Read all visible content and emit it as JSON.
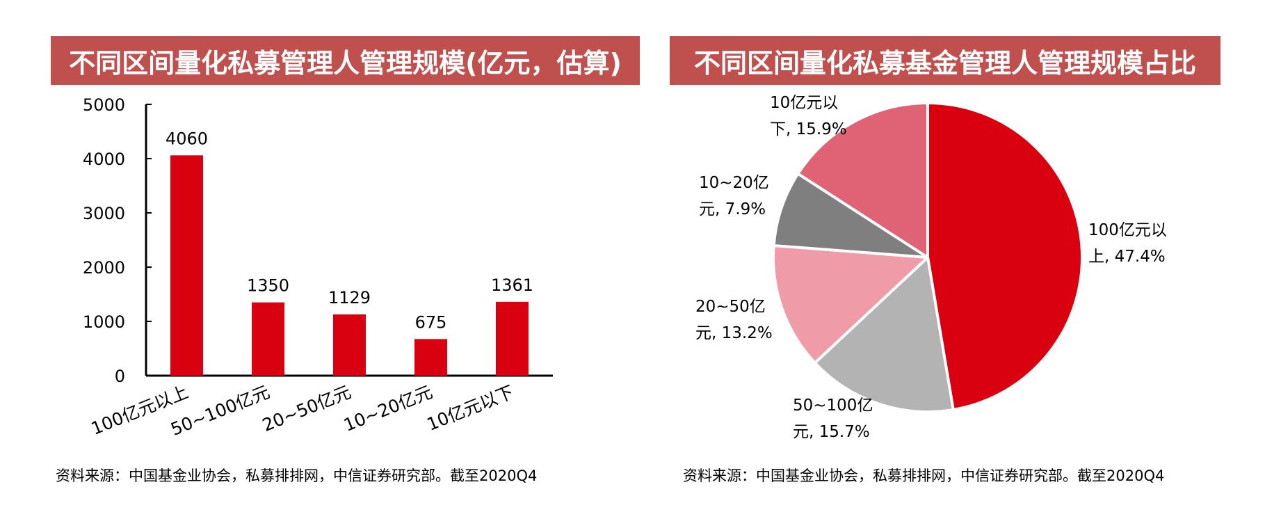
{
  "left_panel": {
    "title": "不同区间量化私募管理人管理规模(亿元，估算)",
    "source": "资料来源：中国基金业协会，私募排排网，中信证券研究部。截至2020Q4"
  },
  "right_panel": {
    "title": "不同区间量化私募基金管理人管理规模占比",
    "source": "资料来源：中国基金业协会，私募排排网，中信证券研究部。截至2020Q4"
  },
  "colors": {
    "title_bg": "#c0504d",
    "bar": "#d9000f"
  },
  "chart_data": [
    {
      "type": "bar",
      "title": "不同区间量化私募管理人管理规模(亿元，估算)",
      "categories": [
        "100亿元以上",
        "50~100亿元",
        "20~50亿元",
        "10~20亿元",
        "10亿元以下"
      ],
      "values": [
        4060,
        1350,
        1129,
        675,
        1361
      ],
      "data_labels": [
        "4060",
        "1350",
        "1129",
        "675",
        "1361"
      ],
      "ylim": [
        0,
        5000
      ],
      "yticks": [
        "0",
        "1000",
        "2000",
        "3000",
        "4000",
        "5000"
      ],
      "grid": false,
      "legend": "none"
    },
    {
      "type": "pie",
      "title": "不同区间量化私募基金管理人管理规模占比",
      "slices": [
        {
          "label": [
            "100亿元以",
            "上, 47.4%"
          ],
          "value": 47.4,
          "color": "#d9000f"
        },
        {
          "label": [
            "50~100亿",
            "元, 15.7%"
          ],
          "value": 15.7,
          "color": "#b3b3b3"
        },
        {
          "label": [
            "20~50亿",
            "元, 13.2%"
          ],
          "value": 13.2,
          "color": "#f09ca8"
        },
        {
          "label": [
            "10~20亿",
            "元, 7.9%"
          ],
          "value": 7.9,
          "color": "#7f7f7f"
        },
        {
          "label": [
            "10亿元以",
            "下, 15.9%"
          ],
          "value": 15.9,
          "color": "#e06375"
        }
      ],
      "start": "12 o'clock",
      "direction": "clockwise"
    }
  ]
}
